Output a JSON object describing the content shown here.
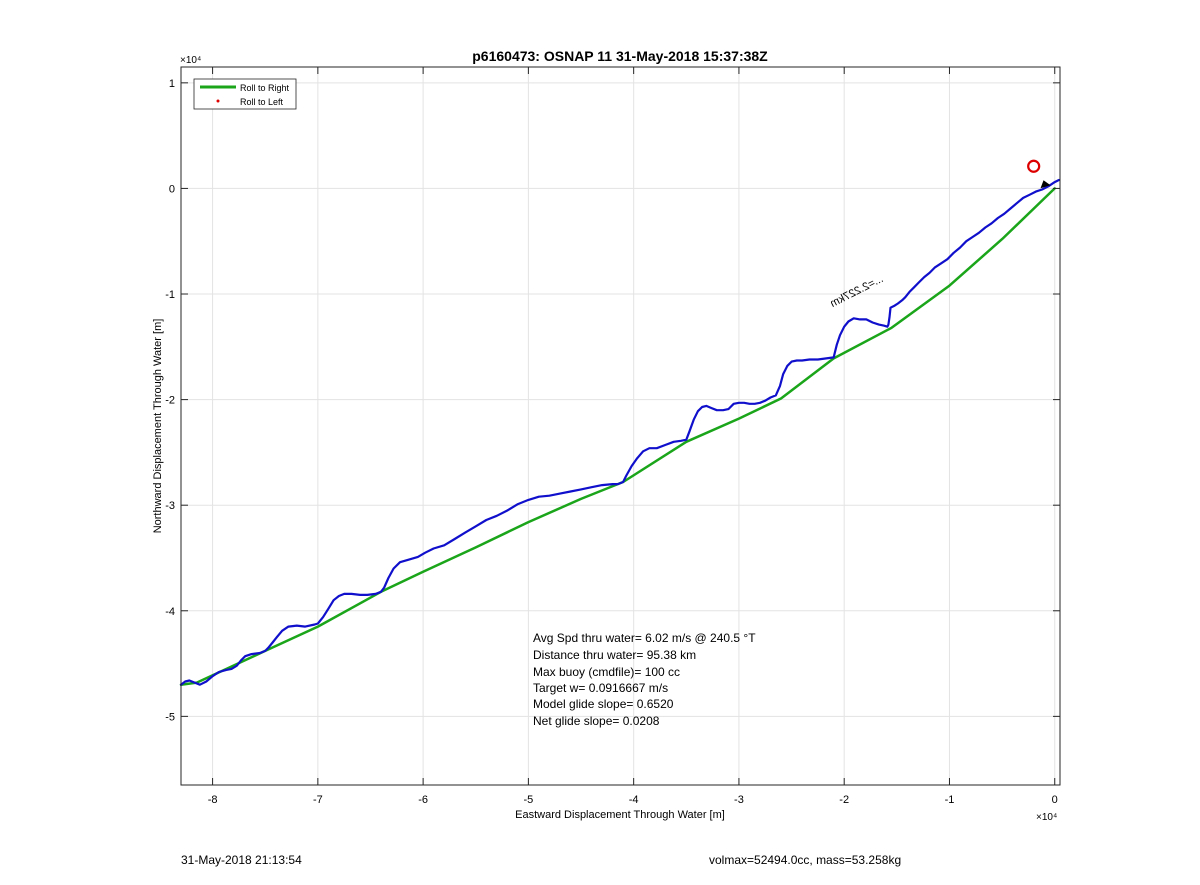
{
  "chart_data": {
    "type": "line",
    "title": "p6160473: OSNAP 11 31-May-2018 15:37:38Z",
    "xlabel": "Eastward Displacement Through Water [m]",
    "ylabel": "Northward Displacement Through Water [m]",
    "x_exponent": "×10⁴",
    "y_exponent": "×10⁴",
    "xlim": [
      -83000,
      500
    ],
    "ylim": [
      -56500,
      11500
    ],
    "xticks": [
      -80000,
      -70000,
      -60000,
      -50000,
      -40000,
      -30000,
      -20000,
      -10000,
      0
    ],
    "xtick_labels": [
      "-8",
      "-7",
      "-6",
      "-5",
      "-4",
      "-3",
      "-2",
      "-1",
      "0"
    ],
    "yticks": [
      -50000,
      -40000,
      -30000,
      -20000,
      -10000,
      0,
      10000
    ],
    "ytick_labels": [
      "-5",
      "-4",
      "-3",
      "-2",
      "-1",
      "0",
      "1"
    ],
    "grid": true,
    "legend_position": "top-left",
    "legend": [
      {
        "label": "Roll to Right",
        "color": "#1aa51a",
        "style": "line"
      },
      {
        "label": "Roll to Left",
        "color": "#e00000",
        "style": "dot"
      }
    ],
    "series": [
      {
        "name": "Roll to Right",
        "color": "#1aa51a",
        "x": [
          -83000,
          -81500,
          -75000,
          -70000,
          -64000,
          -60000,
          -55000,
          -50000,
          -45000,
          -41000,
          -35000,
          -30000,
          -26000,
          -21000,
          -15500,
          -10000,
          -5000,
          0
        ],
        "y": [
          -47000,
          -46800,
          -43800,
          -41500,
          -38200,
          -36300,
          -34000,
          -31600,
          -29400,
          -27800,
          -24000,
          -21800,
          -19900,
          -16100,
          -13200,
          -9200,
          -4800,
          0
        ]
      },
      {
        "color": "#1010cc",
        "x": [
          -83000,
          -82600,
          -82200,
          -81700,
          -81200,
          -80600,
          -80000,
          -79400,
          -78700,
          -78200,
          -77700,
          -77300,
          -76900,
          -76300,
          -75500,
          -75000,
          -74700,
          -74300,
          -73900,
          -73400,
          -72800,
          -72000,
          -71200,
          -70300,
          -70000,
          -69500,
          -69000,
          -68500,
          -68000,
          -67500,
          -66800,
          -66000,
          -65300,
          -64500,
          -64000,
          -63700,
          -63300,
          -62800,
          -62200,
          -61500,
          -60500,
          -59800,
          -59000,
          -58000,
          -57000,
          -56000,
          -55000,
          -54000,
          -53000,
          -52000,
          -51000,
          -50000,
          -49000,
          -48000,
          -47000,
          -46000,
          -45000,
          -44000,
          -43000,
          -42000,
          -41500,
          -41000,
          -40700,
          -40200,
          -39700,
          -39100,
          -38500,
          -37800,
          -37000,
          -36200,
          -35500,
          -35000,
          -34700,
          -34300,
          -33900,
          -33500,
          -33100,
          -32600,
          -32100,
          -31500,
          -31000,
          -30500,
          -30000,
          -29500,
          -29000,
          -28500,
          -28000,
          -27500,
          -27000,
          -26500,
          -26100,
          -25800,
          -25400,
          -25000,
          -24500,
          -24000,
          -23300,
          -22500,
          -21700,
          -21000,
          -20900,
          -20700,
          -20400,
          -20000,
          -19600,
          -19100,
          -18500,
          -17900,
          -17300,
          -16700,
          -16200,
          -15900,
          -15800,
          -15700,
          -15600,
          -15200,
          -14900,
          -14500,
          -14200,
          -13800,
          -13400,
          -12900,
          -12400,
          -11900,
          -11400,
          -10800,
          -10200,
          -9600,
          -9000,
          -8400,
          -7800,
          -7200,
          -6600,
          -6000,
          -5400,
          -4800,
          -4200,
          -3600,
          -3000,
          -2400,
          -1800,
          -1200,
          -600,
          0,
          400
        ],
        "y": [
          -47000,
          -46700,
          -46600,
          -46800,
          -47000,
          -46700,
          -46200,
          -45800,
          -45600,
          -45500,
          -45200,
          -44700,
          -44300,
          -44100,
          -44000,
          -43800,
          -43500,
          -43000,
          -42500,
          -41900,
          -41500,
          -41400,
          -41500,
          -41300,
          -41200,
          -40600,
          -39800,
          -39000,
          -38600,
          -38400,
          -38400,
          -38500,
          -38500,
          -38400,
          -38200,
          -37800,
          -36900,
          -36000,
          -35400,
          -35200,
          -34900,
          -34500,
          -34100,
          -33800,
          -33200,
          -32600,
          -32000,
          -31400,
          -31000,
          -30500,
          -29900,
          -29500,
          -29200,
          -29100,
          -28900,
          -28700,
          -28500,
          -28300,
          -28100,
          -28000,
          -28000,
          -27800,
          -27200,
          -26300,
          -25600,
          -24900,
          -24600,
          -24600,
          -24300,
          -24000,
          -23900,
          -23800,
          -23000,
          -21900,
          -21100,
          -20700,
          -20600,
          -20800,
          -21000,
          -21000,
          -20900,
          -20400,
          -20300,
          -20300,
          -20400,
          -20400,
          -20300,
          -20100,
          -19800,
          -19600,
          -18700,
          -17600,
          -16800,
          -16400,
          -16300,
          -16300,
          -16200,
          -16200,
          -16100,
          -16000,
          -15600,
          -14800,
          -13900,
          -13100,
          -12600,
          -12300,
          -12400,
          -12400,
          -12700,
          -12900,
          -13000,
          -13100,
          -12900,
          -12200,
          -11300,
          -11100,
          -10900,
          -10600,
          -10300,
          -9800,
          -9400,
          -8900,
          -8400,
          -8000,
          -7500,
          -7100,
          -6700,
          -6100,
          -5600,
          -5000,
          -4600,
          -4200,
          -3700,
          -3300,
          -2800,
          -2400,
          -1900,
          -1400,
          -900,
          -600,
          -300,
          -100,
          200,
          600,
          800
        ]
      }
    ],
    "markers": [
      {
        "label": "current position",
        "shape": "circle",
        "color": "#dd0000",
        "x": -2000,
        "y": 2100
      }
    ],
    "annotations": {
      "diagonal": "...=2.227km",
      "stats_lines": [
        "Avg Spd thru water=  6.02 m/s @ 240.5 °T",
        "Distance thru water= 95.38 km",
        "Max buoy (cmdfile)= 100 cc",
        "Target w= 0.0916667 m/s",
        "Model glide slope= 0.6520",
        "Net glide slope= 0.0208"
      ]
    }
  },
  "footer": {
    "left": "31-May-2018 21:13:54",
    "right": "volmax=52494.0cc, mass=53.258kg"
  }
}
